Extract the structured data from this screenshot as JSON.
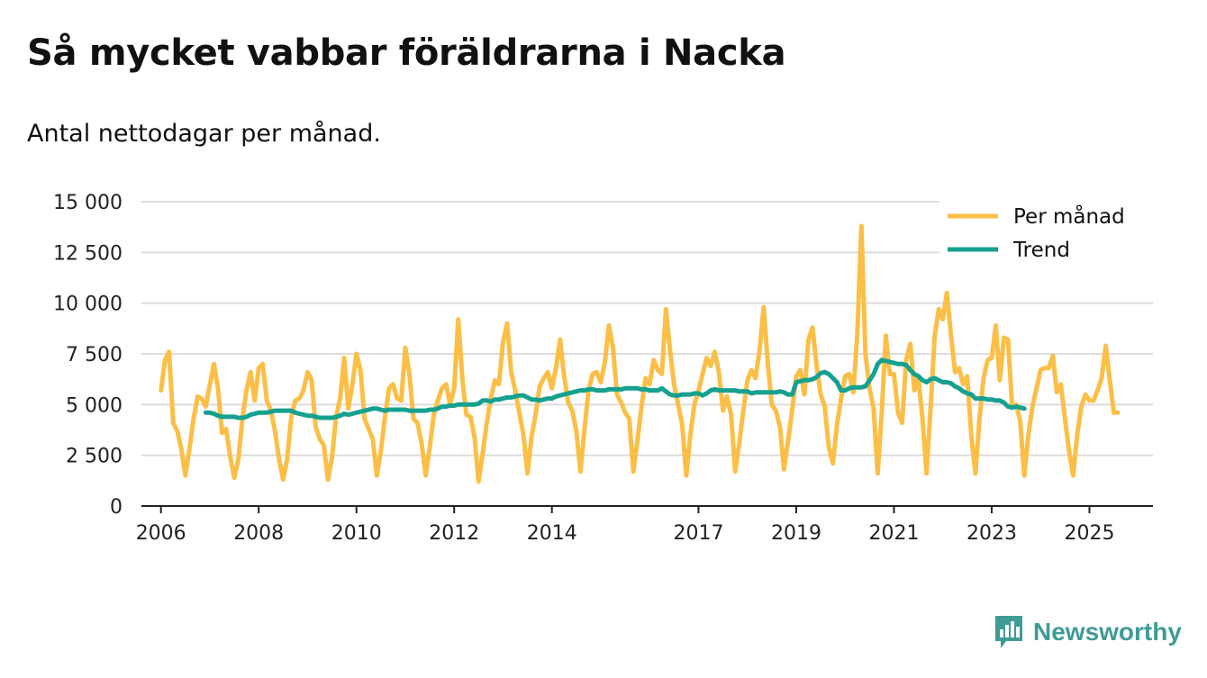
{
  "header": {
    "title": "Så mycket vabbar föräldrarna i Nacka",
    "subtitle": "Antal nettodagar per månad."
  },
  "brand": {
    "name": "Newsworthy",
    "icon": "newsworthy-logo-icon",
    "color": "#3f9c95"
  },
  "chart_data": {
    "type": "line",
    "title": "Så mycket vabbar föräldrarna i Nacka",
    "subtitle": "Antal nettodagar per månad.",
    "xlabel": "",
    "ylabel": "",
    "ylim": [
      0,
      15000
    ],
    "xlim": [
      2005.6,
      2026.3
    ],
    "grid": true,
    "legend_position": "top-right",
    "y_ticks": [
      {
        "value": 0,
        "label": "0"
      },
      {
        "value": 2500,
        "label": "2 500"
      },
      {
        "value": 5000,
        "label": "5 000"
      },
      {
        "value": 7500,
        "label": "7 500"
      },
      {
        "value": 10000,
        "label": "10 000"
      },
      {
        "value": 12500,
        "label": "12 500"
      },
      {
        "value": 15000,
        "label": "15 000"
      }
    ],
    "x_ticks": [
      {
        "value": 2006,
        "label": "2006"
      },
      {
        "value": 2008,
        "label": "2008"
      },
      {
        "value": 2010,
        "label": "2010"
      },
      {
        "value": 2012,
        "label": "2012"
      },
      {
        "value": 2014,
        "label": "2014"
      },
      {
        "value": 2017,
        "label": "2017"
      },
      {
        "value": 2019,
        "label": "2019"
      },
      {
        "value": 2021,
        "label": "2021"
      },
      {
        "value": 2023,
        "label": "2023"
      },
      {
        "value": 2025,
        "label": "2025"
      }
    ],
    "series": [
      {
        "name": "Per månad",
        "color": "#fbbf47",
        "start_year": 2006,
        "values": [
          5700,
          7200,
          7600,
          4100,
          3700,
          2800,
          1500,
          2800,
          4300,
          5400,
          5300,
          4900,
          6000,
          7000,
          5800,
          3600,
          3800,
          2400,
          1400,
          2300,
          4300,
          5700,
          6600,
          5200,
          6800,
          7000,
          5200,
          4700,
          3700,
          2300,
          1300,
          2300,
          4400,
          5200,
          5300,
          5700,
          6600,
          6200,
          3900,
          3300,
          3000,
          1300,
          2400,
          4400,
          5300,
          7300,
          4800,
          6000,
          7500,
          6700,
          4300,
          3800,
          3300,
          1500,
          2700,
          4400,
          5800,
          6000,
          5300,
          5200,
          7800,
          6500,
          4300,
          4100,
          3100,
          1500,
          2900,
          4500,
          5200,
          5800,
          6000,
          5000,
          5800,
          9200,
          6300,
          4500,
          4400,
          3400,
          1200,
          2600,
          4100,
          5300,
          6200,
          6000,
          8100,
          9000,
          6600,
          5700,
          4600,
          3500,
          1600,
          3400,
          4500,
          5900,
          6300,
          6600,
          5800,
          6800,
          8200,
          6400,
          5100,
          4700,
          3700,
          1700,
          3800,
          5700,
          6500,
          6600,
          6100,
          7100,
          8900,
          7800,
          5500,
          5100,
          4600,
          4300,
          1700,
          3200,
          4900,
          6300,
          6000,
          7200,
          6700,
          6500,
          9700,
          7700,
          6000,
          5000,
          4000,
          1500,
          3500,
          5000,
          5700,
          6500,
          7300,
          6900,
          7600,
          6600,
          4700,
          5400,
          4500,
          1700,
          3100,
          4700,
          6200,
          6700,
          6300,
          7700,
          9800,
          7100,
          5000,
          4700,
          3900,
          1800,
          3200,
          4700,
          6400,
          6700,
          5500,
          8200,
          8800,
          6900,
          5500,
          4900,
          2900,
          2100,
          4000,
          5300,
          6400,
          6500,
          5600,
          8500,
          13800,
          7500,
          5800,
          4800,
          1600,
          4600,
          8400,
          6500,
          6500,
          4600,
          4100,
          7200,
          8000,
          5700,
          6300,
          4300,
          1600,
          4900,
          8400,
          9700,
          9200,
          10500,
          8400,
          6600,
          6800,
          6000,
          6400,
          3400,
          1600,
          4300,
          6300,
          7200,
          7300,
          8900,
          6200,
          8300,
          8200,
          4900,
          5000,
          4200,
          1500,
          3500,
          4900,
          5800,
          6700,
          6800,
          6800,
          7400,
          5600,
          6000,
          4300,
          2700,
          1500,
          3500,
          4900,
          5500,
          5200,
          5200,
          5700,
          6300,
          7900,
          6200,
          4600,
          4600
        ]
      },
      {
        "name": "Trend",
        "color": "#16a08f",
        "start_year": 2006.917,
        "values": [
          4600,
          4600,
          4550,
          4450,
          4400,
          4400,
          4400,
          4400,
          4350,
          4350,
          4400,
          4500,
          4550,
          4600,
          4600,
          4600,
          4650,
          4700,
          4700,
          4700,
          4700,
          4700,
          4600,
          4550,
          4500,
          4450,
          4450,
          4400,
          4350,
          4350,
          4350,
          4350,
          4400,
          4450,
          4550,
          4500,
          4550,
          4600,
          4650,
          4700,
          4750,
          4800,
          4800,
          4750,
          4700,
          4750,
          4750,
          4750,
          4750,
          4750,
          4700,
          4700,
          4700,
          4700,
          4700,
          4750,
          4750,
          4800,
          4900,
          4900,
          4950,
          4950,
          5000,
          5000,
          5000,
          5000,
          5000,
          5050,
          5200,
          5200,
          5150,
          5250,
          5250,
          5300,
          5350,
          5350,
          5400,
          5450,
          5450,
          5350,
          5250,
          5250,
          5200,
          5250,
          5300,
          5300,
          5400,
          5450,
          5500,
          5550,
          5600,
          5650,
          5700,
          5700,
          5750,
          5750,
          5700,
          5700,
          5700,
          5750,
          5750,
          5750,
          5750,
          5800,
          5800,
          5800,
          5800,
          5750,
          5750,
          5700,
          5700,
          5700,
          5800,
          5650,
          5500,
          5450,
          5450,
          5500,
          5500,
          5500,
          5550,
          5550,
          5450,
          5550,
          5700,
          5750,
          5700,
          5700,
          5700,
          5700,
          5700,
          5650,
          5650,
          5650,
          5550,
          5600,
          5600,
          5600,
          5600,
          5600,
          5600,
          5650,
          5600,
          5500,
          5500,
          6100,
          6150,
          6200,
          6200,
          6250,
          6350,
          6550,
          6600,
          6500,
          6300,
          6100,
          5700,
          5700,
          5800,
          5850,
          5850,
          5850,
          5900,
          6200,
          6500,
          7000,
          7200,
          7150,
          7100,
          7050,
          7000,
          7000,
          6950,
          6700,
          6500,
          6400,
          6200,
          6100,
          6250,
          6300,
          6200,
          6100,
          6100,
          6050,
          5900,
          5800,
          5650,
          5550,
          5500,
          5300,
          5300,
          5300,
          5250,
          5250,
          5200,
          5200,
          5100,
          4900,
          4850,
          4900,
          4850,
          4800
        ]
      }
    ]
  }
}
